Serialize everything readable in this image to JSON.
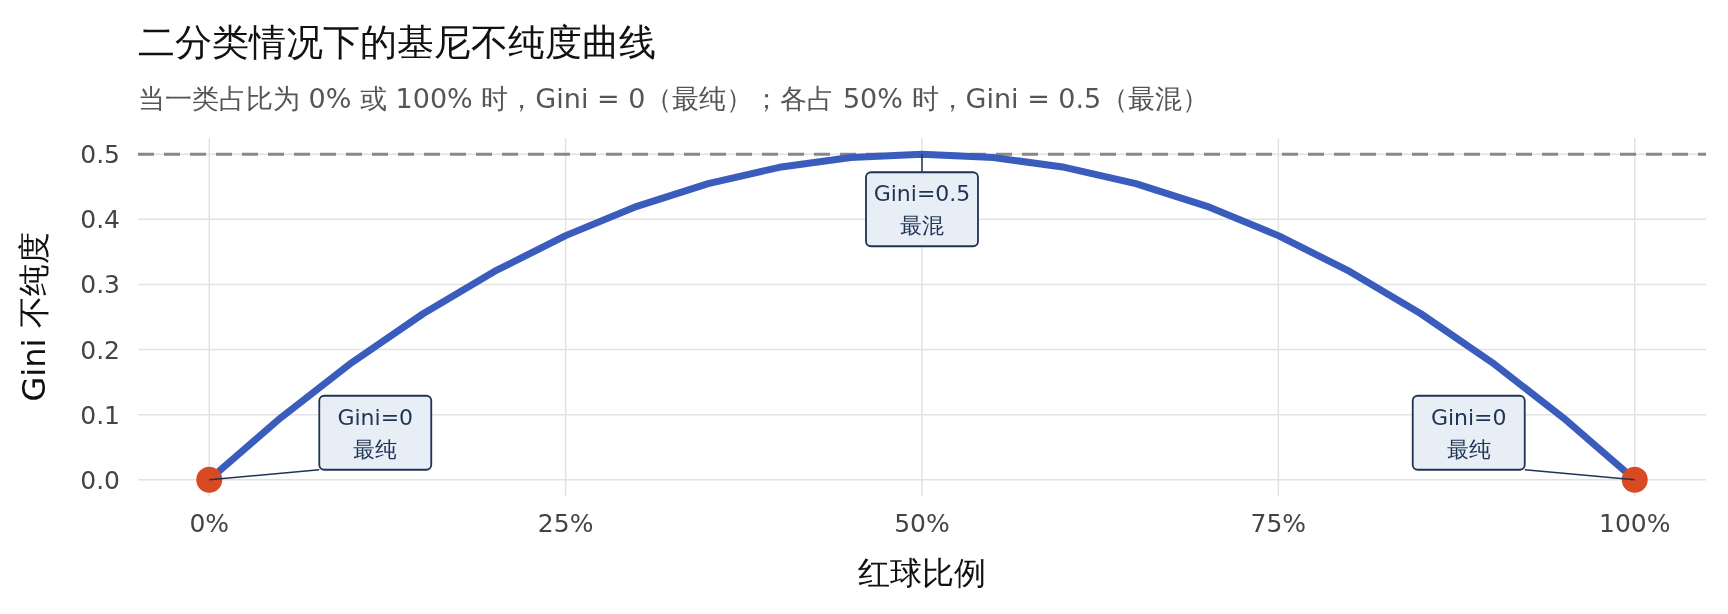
{
  "chart_data": {
    "type": "line",
    "title": "二分类情况下的基尼不纯度曲线",
    "subtitle": "当一类占比为 0% 或 100% 时，Gini = 0（最纯）；各占 50% 时，Gini = 0.5（最混）",
    "xlabel": "红球比例",
    "ylabel": "Gini 不纯度",
    "series": [
      {
        "type": "line",
        "color": "#3a5cbc",
        "x": [
          0,
          5,
          10,
          15,
          20,
          25,
          30,
          35,
          40,
          45,
          50,
          55,
          60,
          65,
          70,
          75,
          80,
          85,
          90,
          95,
          100
        ],
        "values": [
          0,
          0.095,
          0.18,
          0.255,
          0.32,
          0.375,
          0.42,
          0.455,
          0.48,
          0.495,
          0.5,
          0.495,
          0.48,
          0.455,
          0.42,
          0.375,
          0.32,
          0.255,
          0.18,
          0.095,
          0
        ]
      },
      {
        "type": "scatter",
        "color": "#d84a22",
        "marker": "circle",
        "x": [
          0,
          100
        ],
        "values": [
          0,
          0
        ]
      }
    ],
    "xlim": [
      -5,
      105
    ],
    "ylim": [
      -0.025,
      0.525
    ],
    "xticks": [
      {
        "value": 0,
        "label": "0%"
      },
      {
        "value": 25,
        "label": "25%"
      },
      {
        "value": 50,
        "label": "50%"
      },
      {
        "value": 75,
        "label": "75%"
      },
      {
        "value": 100,
        "label": "100%"
      }
    ],
    "yticks": [
      {
        "value": 0,
        "label": "0.0"
      },
      {
        "value": 0.1,
        "label": "0.1"
      },
      {
        "value": 0.2,
        "label": "0.2"
      },
      {
        "value": 0.3,
        "label": "0.3"
      },
      {
        "value": 0.4,
        "label": "0.4"
      },
      {
        "value": 0.5,
        "label": "0.5"
      }
    ],
    "grid": true,
    "ref_lines": [
      {
        "axis": "y",
        "value": 0.5,
        "color": "#888888",
        "line_style": "dashed"
      }
    ],
    "annotations": [
      {
        "text": "Gini=0\n最纯",
        "x": 0,
        "y": 0
      },
      {
        "text": "Gini=0.5\n最混",
        "x": 50,
        "y": 0.5
      },
      {
        "text": "Gini=0\n最纯",
        "x": 100,
        "y": 0
      }
    ]
  }
}
